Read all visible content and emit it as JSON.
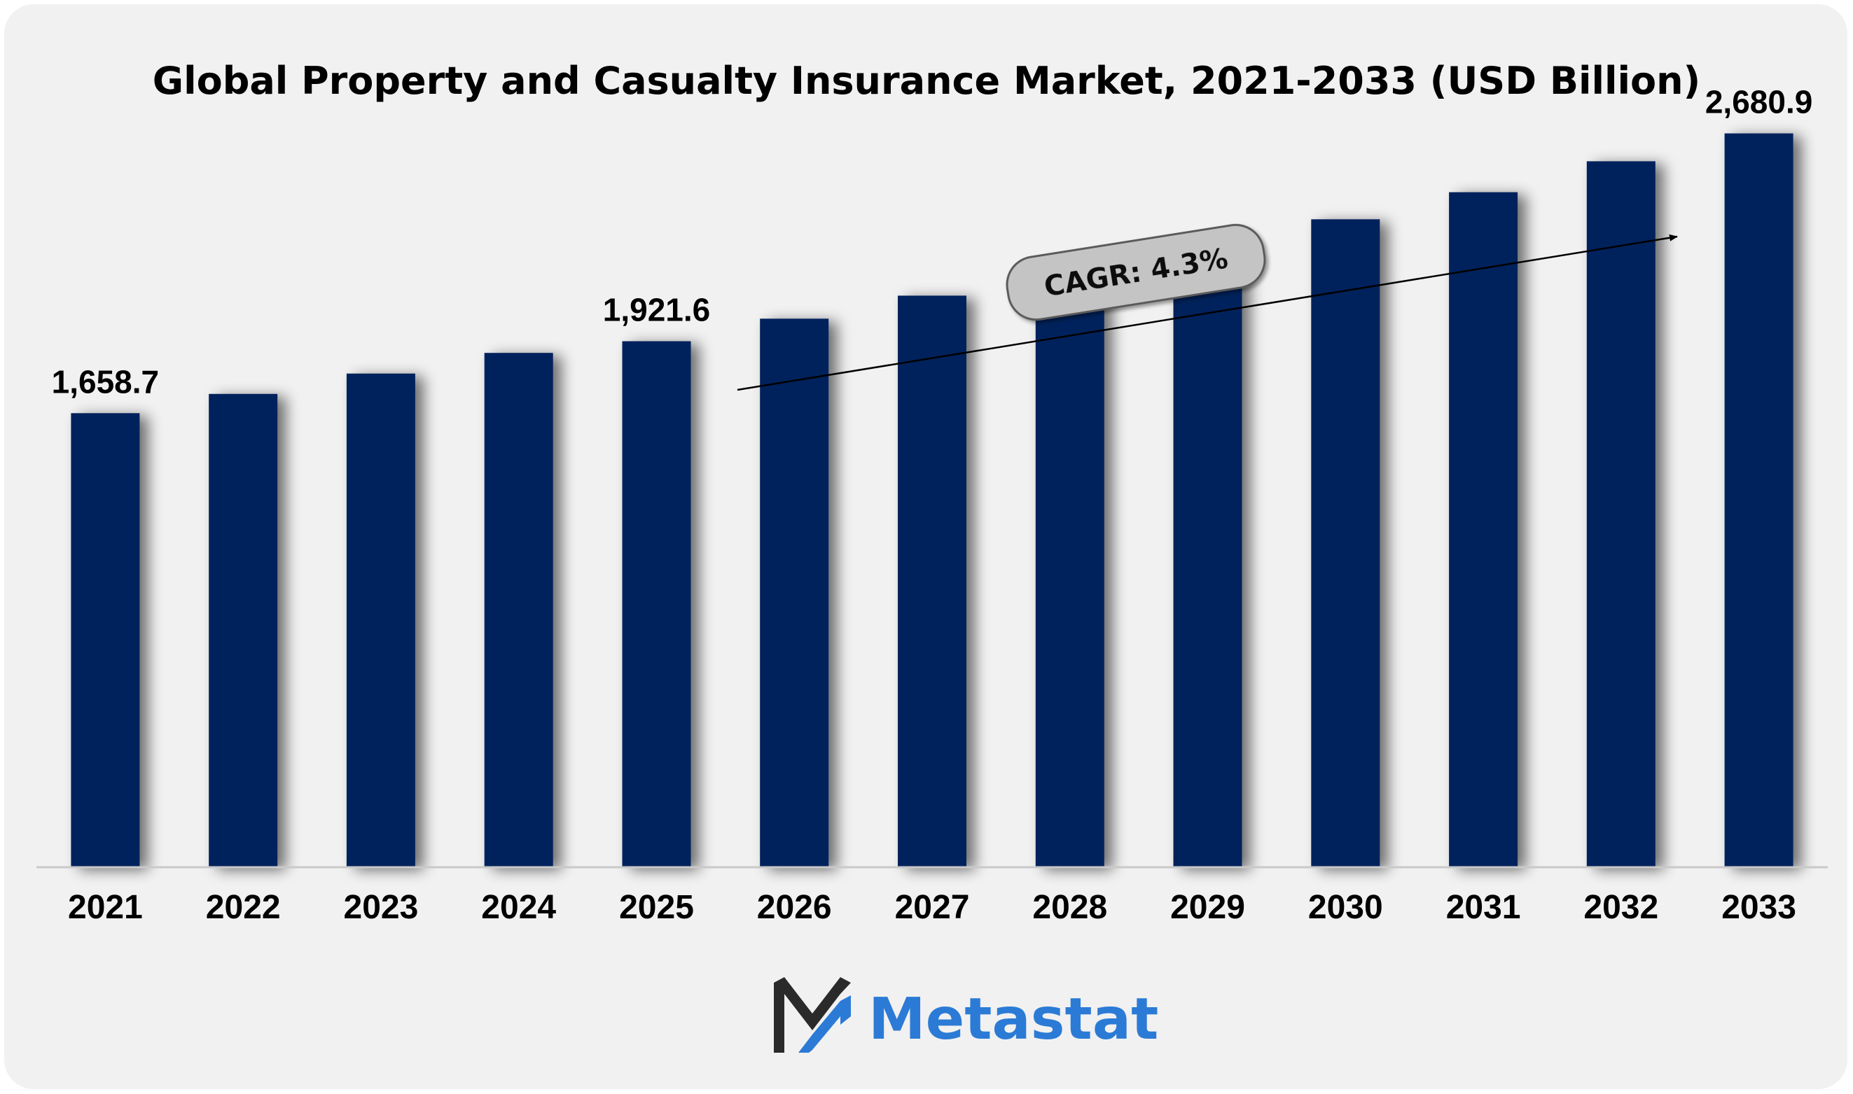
{
  "title": "Global Property and Casualty Insurance Market, 2021-2033 (USD Billion)",
  "annotation": {
    "cagr_label": "CAGR: 4.3%"
  },
  "brand": {
    "name": "Metastat",
    "text_color": "#2b7bd6"
  },
  "colors": {
    "bar": "#03205c",
    "background": "#f1f1f1",
    "badge_fill": "#c4c4c4"
  },
  "chart_data": {
    "type": "bar",
    "title": "Global Property and Casualty Insurance Market, 2021-2033 (USD Billion)",
    "categories": [
      "2021",
      "2022",
      "2023",
      "2024",
      "2025",
      "2026",
      "2027",
      "2028",
      "2029",
      "2030",
      "2031",
      "2032",
      "2033"
    ],
    "values": [
      1658.7,
      1729.0,
      1803.5,
      1879.0,
      1921.6,
      2004.0,
      2088.0,
      2176.0,
      2269.0,
      2367.0,
      2466.0,
      2579.0,
      2680.9
    ],
    "data_labels": [
      "1,658.7",
      "",
      "",
      "",
      "1,921.6",
      "",
      "",
      "",
      "",
      "",
      "",
      "",
      "2,680.9"
    ],
    "xlabel": "",
    "ylabel": "",
    "ylim": [
      0,
      2800
    ],
    "grid": false,
    "legend": "none"
  }
}
